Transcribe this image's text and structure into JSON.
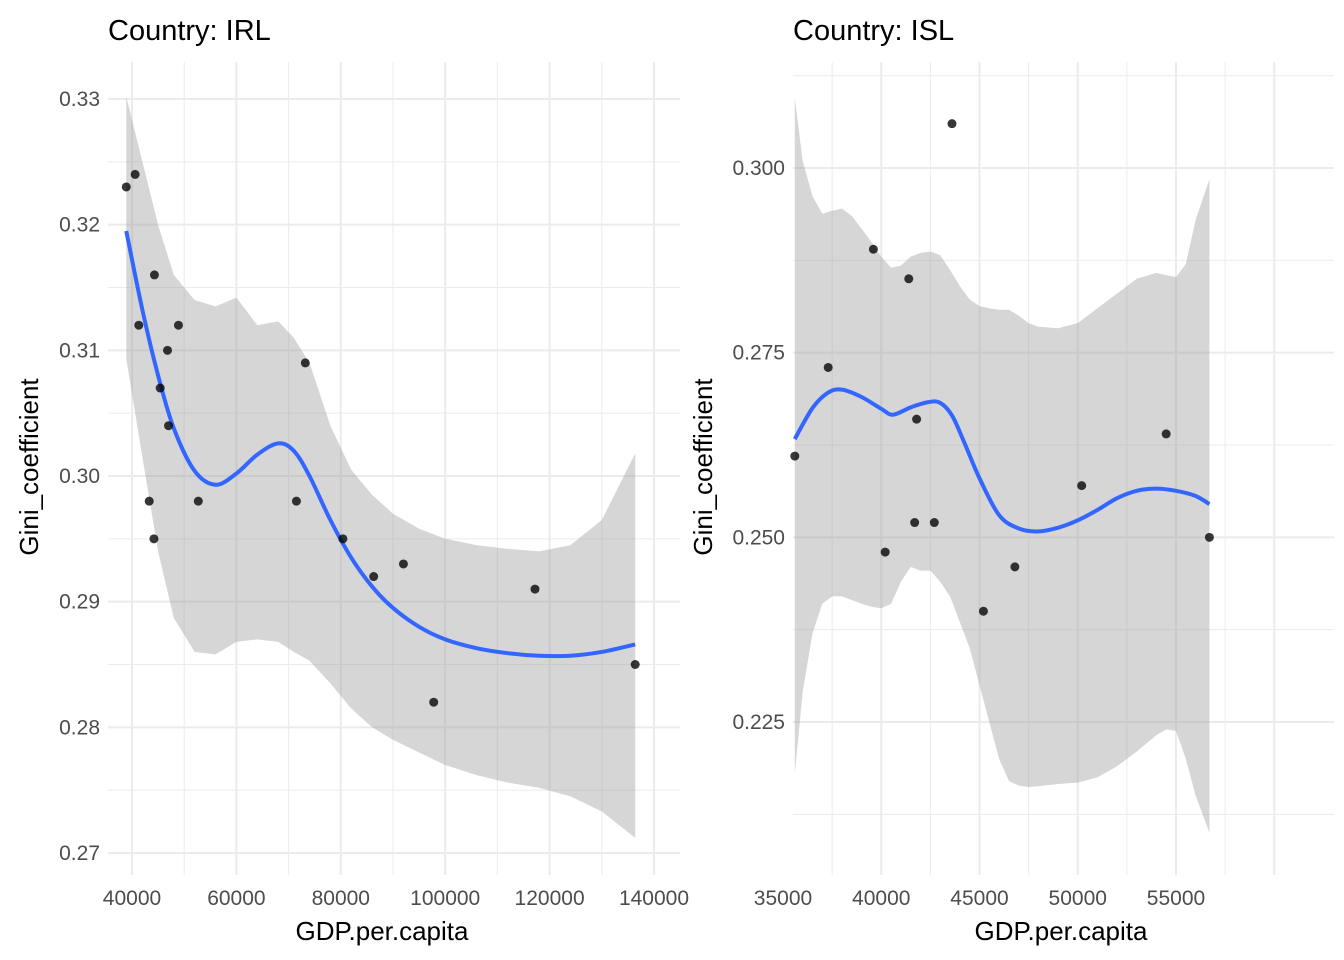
{
  "chart_data": [
    {
      "type": "scatter",
      "title": "Country: IRL",
      "xlabel": "GDP.per.capita",
      "ylabel": "Gini_coefficient",
      "xlim": [
        34000,
        141000
      ],
      "ylim": [
        0.2685,
        0.3335
      ],
      "xticks": [
        40000,
        60000,
        80000,
        100000,
        120000,
        140000
      ],
      "xtick_labels": [
        "40000",
        "60000",
        "80000",
        "100000",
        "120000",
        "140000"
      ],
      "yticks": [
        0.27,
        0.28,
        0.29,
        0.3,
        0.31,
        0.32,
        0.33
      ],
      "ytick_labels": [
        "0.27",
        "0.28",
        "0.29",
        "0.30",
        "0.31",
        "0.32",
        "0.33"
      ],
      "grid": true,
      "points": [
        [
          38900,
          0.323
        ],
        [
          40600,
          0.324
        ],
        [
          41300,
          0.312
        ],
        [
          43300,
          0.298
        ],
        [
          44200,
          0.295
        ],
        [
          44300,
          0.316
        ],
        [
          45400,
          0.307
        ],
        [
          46800,
          0.31
        ],
        [
          47000,
          0.304
        ],
        [
          48900,
          0.312
        ],
        [
          52700,
          0.298
        ],
        [
          71500,
          0.298
        ],
        [
          73200,
          0.309
        ],
        [
          80400,
          0.295
        ],
        [
          86300,
          0.292
        ],
        [
          92000,
          0.293
        ],
        [
          97800,
          0.282
        ],
        [
          117200,
          0.291
        ],
        [
          136400,
          0.285
        ]
      ],
      "smooth": {
        "method": "loess",
        "x": [
          38900,
          42000,
          45000,
          48000,
          52000,
          56000,
          60000,
          64000,
          68000,
          71000,
          74000,
          78000,
          82000,
          86000,
          90000,
          95000,
          100000,
          106000,
          112000,
          118000,
          124000,
          130000,
          136400
        ],
        "y": [
          0.3195,
          0.3132,
          0.308,
          0.3038,
          0.3004,
          0.2993,
          0.3002,
          0.3017,
          0.3026,
          0.302,
          0.3,
          0.2965,
          0.2935,
          0.2912,
          0.2895,
          0.288,
          0.287,
          0.2863,
          0.2859,
          0.2857,
          0.2857,
          0.286,
          0.2866
        ],
        "ymin": [
          0.3093,
          0.3015,
          0.294,
          0.2887,
          0.286,
          0.2858,
          0.2868,
          0.287,
          0.2868,
          0.286,
          0.2853,
          0.2835,
          0.2815,
          0.28,
          0.279,
          0.278,
          0.277,
          0.2762,
          0.2756,
          0.2752,
          0.2745,
          0.2733,
          0.2712
        ],
        "ymax": [
          0.3302,
          0.325,
          0.32,
          0.316,
          0.314,
          0.3135,
          0.3142,
          0.312,
          0.3123,
          0.311,
          0.309,
          0.304,
          0.3005,
          0.2985,
          0.297,
          0.2958,
          0.295,
          0.2945,
          0.2942,
          0.294,
          0.2945,
          0.2965,
          0.3018
        ]
      },
      "colors": {
        "smooth": "#3366ff",
        "band": "#999999",
        "points": "#000000"
      }
    },
    {
      "type": "scatter",
      "title": "Country: ISL",
      "xlabel": "GDP.per.capita",
      "ylabel": "Gini_coefficient",
      "xlim": [
        34600,
        57800
      ],
      "ylim": [
        0.2085,
        0.3135
      ],
      "xticks": [
        35000,
        40000,
        45000,
        50000,
        55000
      ],
      "xtick_labels": [
        "35000",
        "40000",
        "45000",
        "50000",
        "55000"
      ],
      "yticks": [
        0.225,
        0.25,
        0.275,
        0.3
      ],
      "ytick_labels": [
        "0.225",
        "0.250",
        "0.275",
        "0.300"
      ],
      "grid": true,
      "points": [
        [
          35600,
          0.261
        ],
        [
          37300,
          0.273
        ],
        [
          39600,
          0.289
        ],
        [
          40200,
          0.248
        ],
        [
          41400,
          0.285
        ],
        [
          41700,
          0.252
        ],
        [
          41800,
          0.266
        ],
        [
          42700,
          0.252
        ],
        [
          43600,
          0.306
        ],
        [
          45200,
          0.24
        ],
        [
          46800,
          0.246
        ],
        [
          50200,
          0.257
        ],
        [
          54500,
          0.264
        ],
        [
          56700,
          0.25
        ]
      ],
      "smooth": {
        "method": "loess",
        "x": [
          35600,
          36500,
          37300,
          38000,
          39000,
          40000,
          40600,
          41500,
          42400,
          43000,
          43600,
          44200,
          45000,
          46000,
          47000,
          48000,
          49000,
          50000,
          51000,
          52000,
          53000,
          54000,
          55000,
          56000,
          56700
        ],
        "y": [
          0.2633,
          0.2675,
          0.2696,
          0.27,
          0.269,
          0.2674,
          0.2666,
          0.2676,
          0.2683,
          0.2682,
          0.2665,
          0.263,
          0.258,
          0.253,
          0.2512,
          0.2508,
          0.2513,
          0.2523,
          0.2537,
          0.2553,
          0.2563,
          0.2566,
          0.2563,
          0.2556,
          0.2545
        ]
      },
      "band": {
        "x": [
          35600,
          36000,
          36500,
          37000,
          37500,
          38000,
          38500,
          39000,
          39500,
          40000,
          40500,
          41000,
          41500,
          42000,
          42500,
          43000,
          43500,
          44000,
          44500,
          45000,
          45500,
          46000,
          46500,
          47000,
          47500,
          48000,
          49000,
          50000,
          51000,
          52000,
          53000,
          54000,
          54500,
          55000,
          55500,
          56000,
          56700
        ],
        "ymin": [
          0.218,
          0.229,
          0.237,
          0.241,
          0.242,
          0.242,
          0.2415,
          0.241,
          0.2406,
          0.2404,
          0.241,
          0.244,
          0.246,
          0.2455,
          0.2455,
          0.244,
          0.242,
          0.2385,
          0.235,
          0.23,
          0.225,
          0.22,
          0.217,
          0.2164,
          0.2162,
          0.2163,
          0.2166,
          0.2168,
          0.2175,
          0.219,
          0.221,
          0.2232,
          0.224,
          0.2238,
          0.22,
          0.215,
          0.21
        ],
        "ymax": [
          0.3095,
          0.301,
          0.2962,
          0.2938,
          0.2942,
          0.2945,
          0.2935,
          0.2918,
          0.29,
          0.288,
          0.2865,
          0.2868,
          0.288,
          0.2885,
          0.2887,
          0.2882,
          0.2862,
          0.284,
          0.2822,
          0.2813,
          0.281,
          0.2808,
          0.2808,
          0.28,
          0.279,
          0.2785,
          0.2783,
          0.279,
          0.281,
          0.283,
          0.285,
          0.2858,
          0.2855,
          0.2852,
          0.287,
          0.293,
          0.2985
        ]
      },
      "colors": {
        "smooth": "#3366ff",
        "band": "#999999",
        "points": "#000000"
      }
    }
  ]
}
